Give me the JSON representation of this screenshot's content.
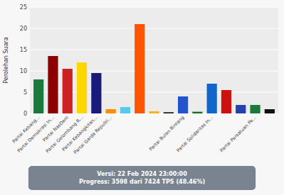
{
  "chart_data": {
    "type": "bar",
    "categories": [
      "Partai Kebang...",
      "Partai Demokrasi In...",
      "Partai NasDem",
      "Partai Gelombang R...",
      "Partai Kebangkitan...",
      "Partai Garda Republi...",
      null,
      null,
      null,
      null,
      "Partai Bulan Bintang",
      null,
      "Partai Solidaritas In...",
      null,
      null,
      "Partai Persatuan Pe...",
      null
    ],
    "values": [
      8.0,
      13.5,
      10.5,
      12.0,
      9.5,
      1.0,
      1.5,
      21.0,
      0.5,
      0.3,
      4.0,
      0.4,
      7.0,
      5.5,
      2.0,
      2.0,
      1.0
    ],
    "colors": [
      "#1a7a3c",
      "#8B0000",
      "#CC2222",
      "#FFD700",
      "#1a1a7a",
      "#FF8C00",
      "#55CCEE",
      "#FF5500",
      "#FFB300",
      "#222222",
      "#2255CC",
      "#1a6e1a",
      "#1166CC",
      "#CC1111",
      "#2244AA",
      "#1a7a3c",
      "#111111"
    ],
    "y_label": "Perolehan Suara",
    "ylim": [
      0,
      25
    ],
    "yticks": [
      0,
      5,
      10,
      15,
      20,
      25
    ],
    "grid": true,
    "annotations": [
      "Versi: 22 Feb 2024 23:00:00",
      "Progress: 3598 dari 7424 TPS (48.46%)"
    ]
  }
}
